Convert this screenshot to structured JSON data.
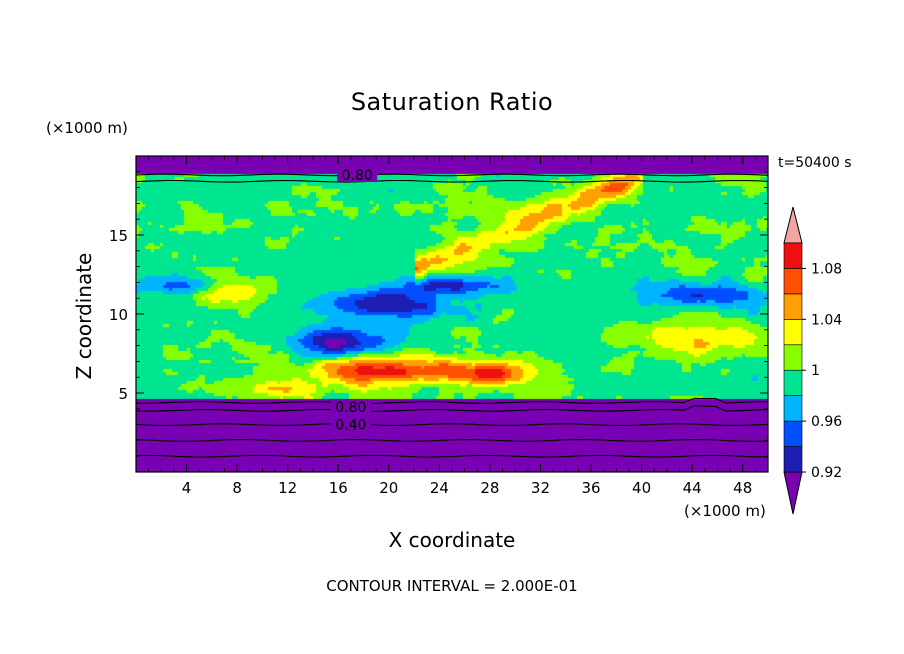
{
  "chart_data": {
    "type": "heatmap",
    "title": "Saturation Ratio",
    "xlabel": "X coordinate",
    "ylabel": "Z coordinate",
    "x_unit": "(×1000 m)",
    "y_unit": "(×1000 m)",
    "time_label": "t=50400 s",
    "footer": "CONTOUR INTERVAL = 2.000E-01",
    "xlim": [
      0,
      50
    ],
    "ylim": [
      0,
      20
    ],
    "x_ticks": [
      4,
      8,
      12,
      16,
      20,
      24,
      28,
      32,
      36,
      40,
      44,
      48
    ],
    "y_ticks": [
      5,
      10,
      15
    ],
    "colorbar": {
      "levels": [
        0.9,
        0.92,
        0.94,
        0.96,
        0.98,
        1.0,
        1.02,
        1.04,
        1.06,
        1.08,
        1.1
      ],
      "colors": [
        "#7a00b4",
        "#1e1eb4",
        "#0050ff",
        "#00b4ff",
        "#00e690",
        "#88ff00",
        "#ffff00",
        "#ffa000",
        "#ff5000",
        "#ee1010",
        "#f5a5a0"
      ],
      "labels": [
        {
          "value": 0.92,
          "text": "0.92"
        },
        {
          "value": 0.96,
          "text": "0.96"
        },
        {
          "value": 1.0,
          "text": "1"
        },
        {
          "value": 1.04,
          "text": "1.04"
        },
        {
          "value": 1.08,
          "text": "1.08"
        }
      ]
    },
    "contour_labels": [
      {
        "text": "0.80",
        "x": 17.5,
        "z": 18.8
      },
      {
        "text": "0.80",
        "x": 17.0,
        "z": 4.1
      },
      {
        "text": "0.40",
        "x": 17.0,
        "z": 3.0
      }
    ]
  }
}
